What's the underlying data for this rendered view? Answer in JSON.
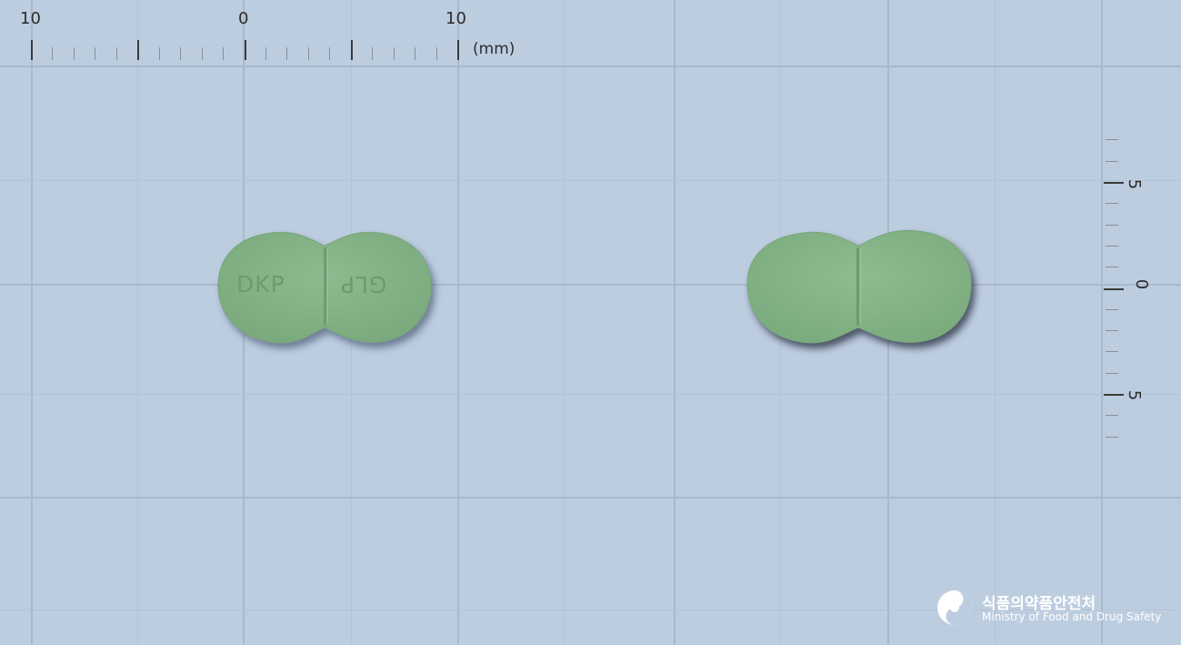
{
  "image": {
    "subject": "two green oval scored tablets on a blue measuring grid",
    "background_color": "#bdcde0",
    "tablet_color": "#86b589"
  },
  "top_ruler": {
    "labels": [
      "10",
      "0",
      "10"
    ],
    "unit": "(mm)"
  },
  "side_ruler": {
    "labels": [
      "5",
      "0",
      "5"
    ]
  },
  "tablets": {
    "front": {
      "imprint_left": "DKP",
      "imprint_right": "GLP"
    }
  },
  "watermark": {
    "logo_icon": "mfds-swirl-icon",
    "korean_name": "식품의약품안전처",
    "english_name": "Ministry of Food and Drug Safety"
  }
}
